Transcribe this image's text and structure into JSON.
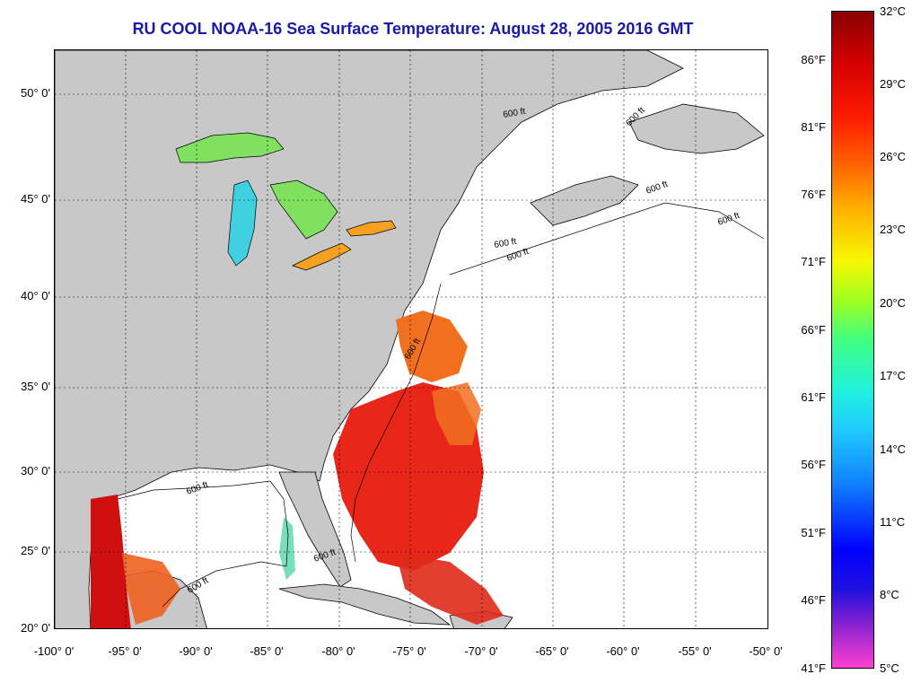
{
  "title": "RU COOL  NOAA-16  Sea Surface Temperature:  August 28, 2005 2016 GMT",
  "lat_ticks": [
    {
      "label": "50° 0'"
    },
    {
      "label": "45° 0'"
    },
    {
      "label": "40° 0'"
    },
    {
      "label": "35° 0'"
    },
    {
      "label": "30° 0'"
    },
    {
      "label": "25° 0'"
    },
    {
      "label": "20° 0'"
    }
  ],
  "lon_ticks": [
    {
      "label": "-100° 0'"
    },
    {
      "label": "-95° 0'"
    },
    {
      "label": "-90° 0'"
    },
    {
      "label": "-85° 0'"
    },
    {
      "label": "-80° 0'"
    },
    {
      "label": "-75° 0'"
    },
    {
      "label": "-70° 0'"
    },
    {
      "label": "-65° 0'"
    },
    {
      "label": "-60° 0'"
    },
    {
      "label": "-55° 0'"
    },
    {
      "label": "-50° 0'"
    }
  ],
  "colorbar": {
    "fahrenheit": [
      "86°F",
      "81°F",
      "76°F",
      "71°F",
      "66°F",
      "61°F",
      "56°F",
      "51°F",
      "46°F",
      "41°F"
    ],
    "celsius": [
      "32°C",
      "29°C",
      "26°C",
      "23°C",
      "20°C",
      "17°C",
      "14°C",
      "11°C",
      "8°C",
      "5°C"
    ]
  },
  "contour_labels": [
    "600 ft",
    "600 ft",
    "600 ft",
    "600 ft",
    "600 ft",
    "600 ft",
    "600 ft",
    "600 ft",
    "600 ft",
    "600 ft"
  ],
  "colors": {
    "land": "#c8c8c8",
    "title": "#1a1aa6",
    "warm": "#e8261a",
    "hot": "#d01010",
    "orange": "#f07020",
    "lake_green": "#80e060",
    "lake_cyan": "#40d0e0"
  }
}
